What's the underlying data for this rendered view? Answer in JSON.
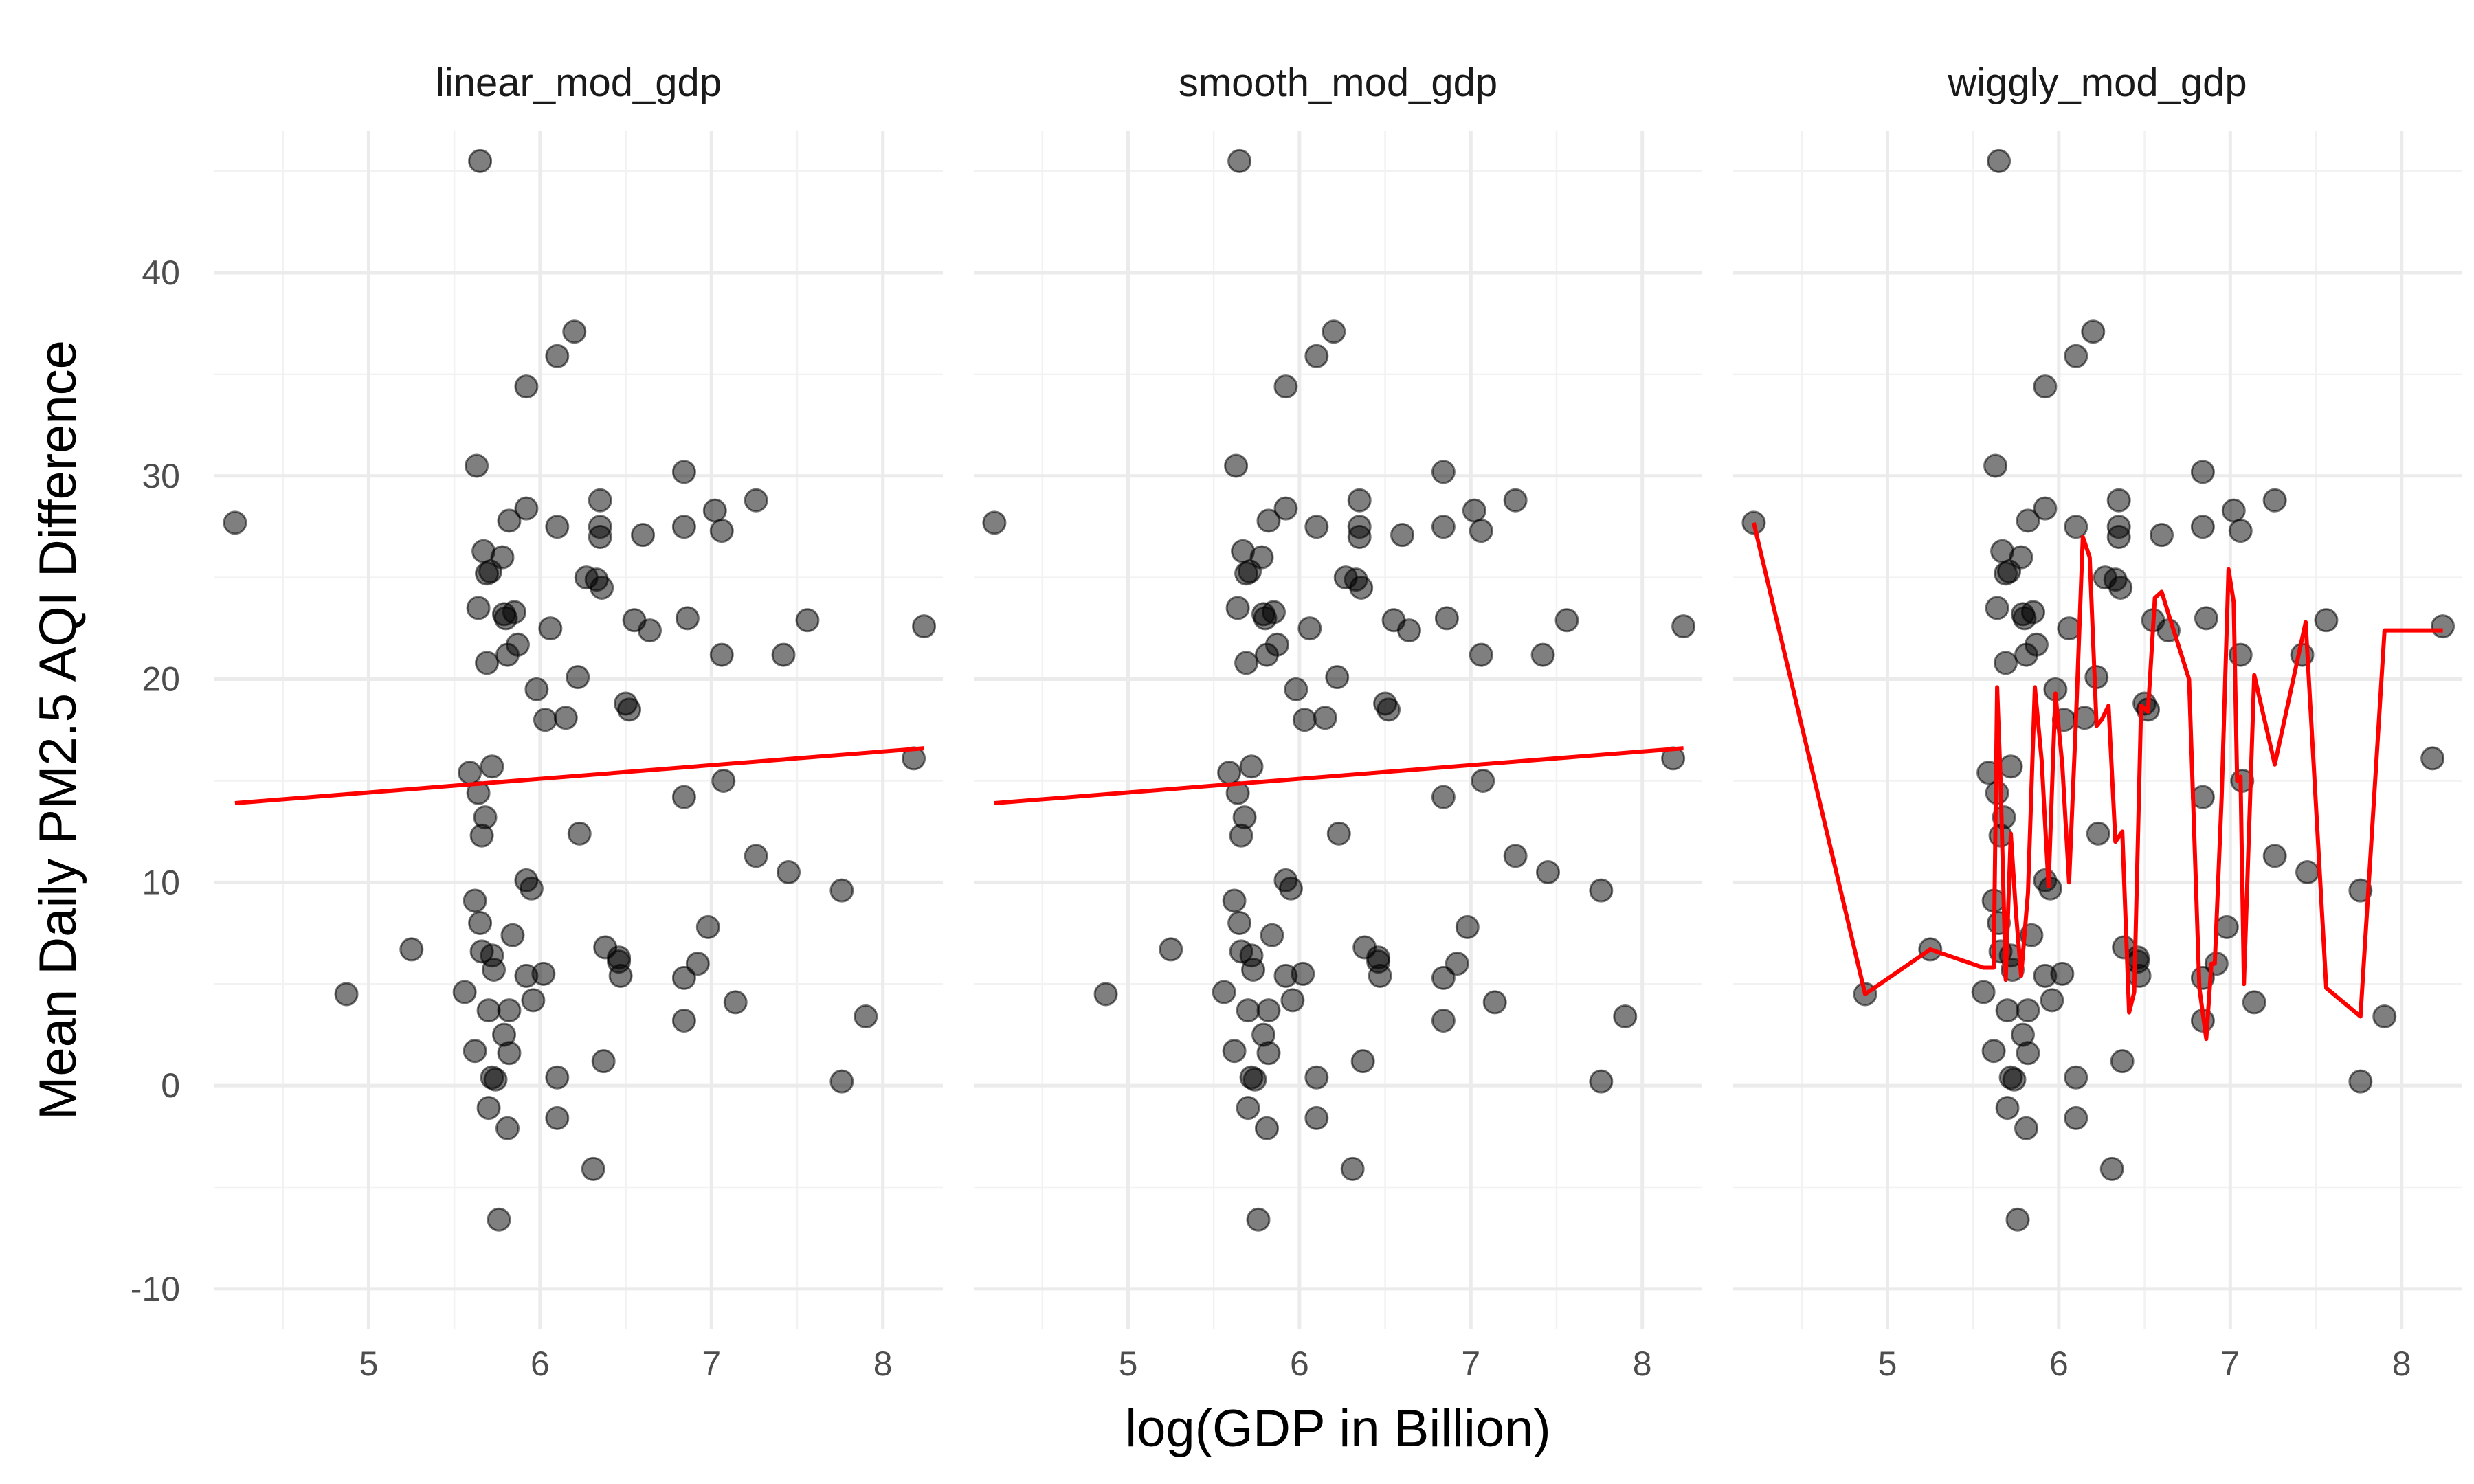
{
  "chart_data": {
    "type": "scatter",
    "facet_labels": [
      "linear_mod_gdp",
      "smooth_mod_gdp",
      "wiggly_mod_gdp"
    ],
    "xlabel": "log(GDP in Billion)",
    "ylabel": "Mean Daily PM2.5 AQI Difference",
    "xlim": [
      4.1,
      8.35
    ],
    "ylim": [
      -12,
      47
    ],
    "x_ticks": [
      5,
      6,
      7,
      8
    ],
    "y_ticks": [
      -10,
      0,
      10,
      20,
      30,
      40
    ],
    "grid": true,
    "colors": {
      "points": "#000000",
      "fit_line": "#ff0000",
      "grid_major": "#ebebeb",
      "grid_minor": "#f2f2f2"
    },
    "points": [
      [
        4.22,
        27.7
      ],
      [
        4.87,
        4.5
      ],
      [
        5.25,
        6.7
      ],
      [
        5.56,
        4.6
      ],
      [
        5.59,
        15.4
      ],
      [
        5.62,
        9.1
      ],
      [
        5.62,
        1.7
      ],
      [
        5.63,
        30.5
      ],
      [
        5.64,
        23.5
      ],
      [
        5.64,
        14.4
      ],
      [
        5.65,
        45.5
      ],
      [
        5.65,
        8.0
      ],
      [
        5.66,
        12.3
      ],
      [
        5.66,
        6.6
      ],
      [
        5.67,
        26.3
      ],
      [
        5.68,
        13.2
      ],
      [
        5.69,
        25.2
      ],
      [
        5.69,
        20.8
      ],
      [
        5.7,
        3.7
      ],
      [
        5.7,
        -1.1
      ],
      [
        5.71,
        25.3
      ],
      [
        5.72,
        15.7
      ],
      [
        5.72,
        6.4
      ],
      [
        5.72,
        0.4
      ],
      [
        5.73,
        5.7
      ],
      [
        5.74,
        0.3
      ],
      [
        5.76,
        -6.6
      ],
      [
        5.78,
        26.0
      ],
      [
        5.79,
        23.2
      ],
      [
        5.79,
        2.5
      ],
      [
        5.8,
        23.0
      ],
      [
        5.81,
        21.2
      ],
      [
        5.81,
        -2.1
      ],
      [
        5.82,
        27.8
      ],
      [
        5.82,
        3.7
      ],
      [
        5.82,
        1.6
      ],
      [
        5.84,
        7.4
      ],
      [
        5.85,
        23.3
      ],
      [
        5.87,
        21.7
      ],
      [
        5.92,
        28.4
      ],
      [
        5.92,
        34.4
      ],
      [
        5.92,
        10.1
      ],
      [
        5.92,
        5.4
      ],
      [
        5.95,
        9.7
      ],
      [
        5.96,
        4.2
      ],
      [
        5.98,
        19.5
      ],
      [
        6.02,
        5.5
      ],
      [
        6.03,
        18.0
      ],
      [
        6.06,
        22.5
      ],
      [
        6.1,
        27.5
      ],
      [
        6.1,
        35.9
      ],
      [
        6.1,
        0.4
      ],
      [
        6.1,
        -1.6
      ],
      [
        6.15,
        18.1
      ],
      [
        6.2,
        37.1
      ],
      [
        6.22,
        20.1
      ],
      [
        6.23,
        12.4
      ],
      [
        6.27,
        25.0
      ],
      [
        6.31,
        -4.1
      ],
      [
        6.33,
        24.9
      ],
      [
        6.35,
        28.8
      ],
      [
        6.35,
        27.5
      ],
      [
        6.35,
        27.0
      ],
      [
        6.36,
        24.5
      ],
      [
        6.37,
        1.2
      ],
      [
        6.38,
        6.8
      ],
      [
        6.46,
        6.3
      ],
      [
        6.46,
        6.1
      ],
      [
        6.47,
        5.4
      ],
      [
        6.5,
        18.8
      ],
      [
        6.52,
        18.5
      ],
      [
        6.55,
        22.9
      ],
      [
        6.6,
        27.1
      ],
      [
        6.64,
        22.4
      ],
      [
        6.84,
        30.2
      ],
      [
        6.84,
        27.5
      ],
      [
        6.84,
        14.2
      ],
      [
        6.84,
        5.3
      ],
      [
        6.84,
        3.2
      ],
      [
        6.86,
        23.0
      ],
      [
        6.92,
        6.0
      ],
      [
        6.98,
        7.8
      ],
      [
        7.02,
        28.3
      ],
      [
        7.06,
        27.3
      ],
      [
        7.06,
        21.2
      ],
      [
        7.07,
        15.0
      ],
      [
        7.14,
        4.1
      ],
      [
        7.26,
        28.8
      ],
      [
        7.26,
        11.3
      ],
      [
        7.42,
        21.2
      ],
      [
        7.45,
        10.5
      ],
      [
        7.56,
        22.9
      ],
      [
        7.76,
        9.6
      ],
      [
        7.76,
        0.2
      ],
      [
        7.9,
        3.4
      ],
      [
        8.18,
        16.1
      ],
      [
        8.24,
        22.6
      ]
    ],
    "series": [
      {
        "facet": "linear_mod_gdp",
        "x": [
          4.22,
          8.24
        ],
        "y": [
          13.9,
          16.6
        ]
      },
      {
        "facet": "smooth_mod_gdp",
        "x": [
          4.22,
          8.24
        ],
        "y": [
          13.9,
          16.6
        ]
      },
      {
        "facet": "wiggly_mod_gdp",
        "x": [
          4.22,
          4.87,
          5.25,
          5.56,
          5.62,
          5.64,
          5.66,
          5.69,
          5.72,
          5.75,
          5.78,
          5.82,
          5.86,
          5.9,
          5.94,
          5.98,
          6.02,
          6.06,
          6.1,
          6.14,
          6.18,
          6.22,
          6.25,
          6.29,
          6.33,
          6.37,
          6.41,
          6.44,
          6.48,
          6.52,
          6.56,
          6.6,
          6.64,
          6.7,
          6.76,
          6.82,
          6.86,
          6.89,
          6.91,
          6.95,
          6.99,
          7.02,
          7.04,
          7.06,
          7.08,
          7.14,
          7.26,
          7.44,
          7.56,
          7.76,
          7.9,
          8.24
        ],
        "y": [
          27.7,
          4.5,
          6.7,
          5.8,
          5.8,
          19.6,
          15.0,
          5.2,
          12.4,
          8.5,
          5.4,
          9.5,
          19.6,
          16.0,
          9.8,
          19.3,
          15.8,
          10.0,
          18.0,
          27.0,
          26.0,
          17.7,
          18.0,
          18.7,
          12.0,
          12.5,
          3.6,
          4.6,
          18.7,
          18.4,
          24.0,
          24.3,
          23.2,
          21.6,
          20.0,
          4.8,
          2.3,
          6.0,
          6.0,
          14.2,
          25.4,
          23.8,
          15.0,
          15.2,
          5.0,
          20.2,
          15.8,
          22.8,
          4.8,
          3.4,
          22.4,
          22.4
        ]
      }
    ]
  }
}
